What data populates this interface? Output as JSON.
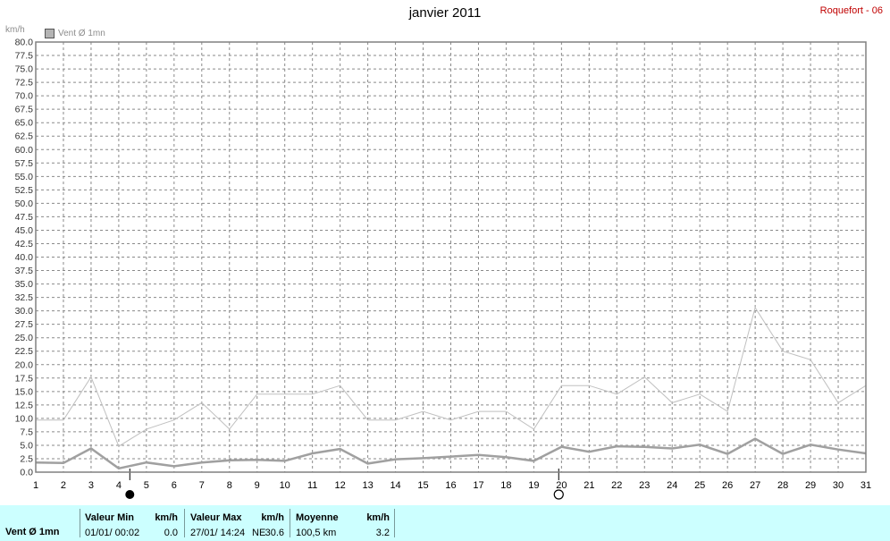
{
  "title": "janvier 2011",
  "station": "Roquefort - 06",
  "unit_label": "km/h",
  "legend": {
    "label": "Vent Ø 1mn",
    "color": "#b4b4b4"
  },
  "chart_data": {
    "type": "line",
    "title": "janvier 2011",
    "ylabel": "km/h",
    "ylim": [
      0,
      80
    ],
    "ytick_step": 2.5,
    "xlim": [
      1,
      31
    ],
    "x_ticks": [
      1,
      2,
      3,
      4,
      5,
      6,
      7,
      8,
      9,
      10,
      11,
      12,
      13,
      14,
      15,
      16,
      17,
      18,
      19,
      20,
      21,
      22,
      23,
      24,
      25,
      26,
      27,
      28,
      29,
      30,
      31
    ],
    "grid": true,
    "legend_position": "top-left",
    "series": [
      {
        "name": "Vent Ø 1mn",
        "role": "max",
        "color": "#c0c0c0",
        "x": [
          1,
          2,
          3,
          4,
          5,
          6,
          7,
          8,
          9,
          10,
          11,
          12,
          13,
          14,
          15,
          16,
          17,
          18,
          19,
          20,
          21,
          22,
          23,
          24,
          25,
          26,
          27,
          28,
          29,
          30,
          31
        ],
        "values": [
          9.7,
          9.7,
          17.7,
          4.8,
          8.0,
          9.7,
          12.9,
          8.0,
          14.5,
          14.5,
          14.5,
          16.1,
          9.7,
          9.7,
          11.3,
          9.7,
          11.3,
          11.3,
          8.0,
          16.1,
          16.1,
          14.5,
          17.7,
          12.9,
          14.5,
          11.3,
          30.6,
          22.5,
          20.9,
          12.9,
          16.1
        ]
      },
      {
        "name": "Vent Ø 1mn",
        "role": "mean",
        "color": "#a0a0a0",
        "x": [
          1,
          2,
          3,
          4,
          5,
          6,
          7,
          8,
          9,
          10,
          11,
          12,
          13,
          14,
          15,
          16,
          17,
          18,
          19,
          20,
          21,
          22,
          23,
          24,
          25,
          26,
          27,
          28,
          29,
          30,
          31
        ],
        "values": [
          1.8,
          1.7,
          4.4,
          0.7,
          1.8,
          1.1,
          1.8,
          2.2,
          2.3,
          2.1,
          3.5,
          4.3,
          1.6,
          2.4,
          2.6,
          2.9,
          3.2,
          2.8,
          2.1,
          4.7,
          3.8,
          4.8,
          4.7,
          4.4,
          5.1,
          3.4,
          6.2,
          3.4,
          5.1,
          4.2,
          3.5
        ]
      }
    ],
    "markers": [
      {
        "x": 4.4,
        "symbol": "new-moon",
        "glyph": "●"
      },
      {
        "x": 19.9,
        "symbol": "full-moon",
        "glyph": "○"
      }
    ]
  },
  "stats": {
    "name": "Vent Ø 1mn",
    "min": {
      "label": "Valeur Min",
      "unit": "km/h",
      "when": "01/01/  00:02",
      "value": "0.0"
    },
    "max": {
      "label": "Valeur Max",
      "unit": "km/h",
      "when": "27/01/  14:24",
      "dir": "NE",
      "value": "30.6"
    },
    "mean": {
      "label": "Moyenne",
      "unit": "km/h",
      "distance": "100,5 km",
      "value": "3.2"
    }
  }
}
